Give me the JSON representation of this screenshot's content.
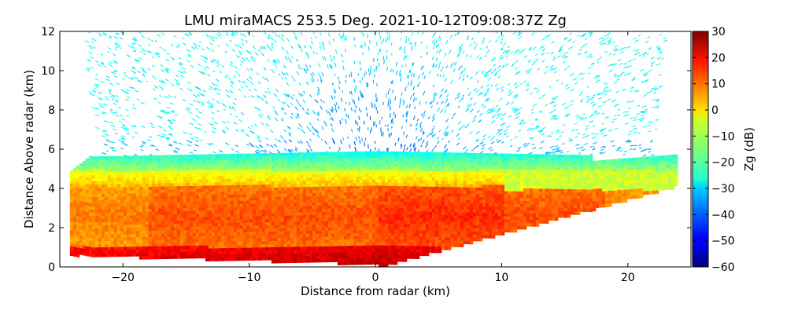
{
  "chart_data": {
    "type": "heatmap",
    "title": "LMU miraMACS 253.5 Deg. 2021-10-12T09:08:37Z  Zg",
    "xlabel": "Distance from radar (km)",
    "ylabel": "Distance Above radar  (km)",
    "xlim": [
      -25,
      25
    ],
    "ylim": [
      0,
      12
    ],
    "xticks": [
      -20,
      -10,
      0,
      10,
      20
    ],
    "yticks": [
      0,
      2,
      4,
      6,
      8,
      10,
      12
    ],
    "grid": false,
    "colorbar": {
      "label": "Zg (dB)",
      "range": [
        -60,
        30
      ],
      "ticks": [
        30,
        20,
        10,
        0,
        -10,
        -20,
        -30,
        -40,
        -50,
        -60
      ],
      "colormap": "jet"
    },
    "regions": [
      {
        "description": "strong echo near ground",
        "x_range": [
          -24,
          5
        ],
        "y_range": [
          0,
          1.2
        ],
        "value_db": 22
      },
      {
        "description": "main precipitation layer",
        "x_range": [
          -24,
          24
        ],
        "y_range": [
          1.0,
          4.5
        ],
        "value_db": 10
      },
      {
        "description": "upper cloud layer",
        "x_range": [
          -23,
          23
        ],
        "y_range": [
          4.5,
          6.0
        ],
        "value_db": -10
      },
      {
        "description": "noise above cloud",
        "x_range": [
          -22,
          23
        ],
        "y_range": [
          6.0,
          12
        ],
        "value_db": -30
      }
    ]
  }
}
